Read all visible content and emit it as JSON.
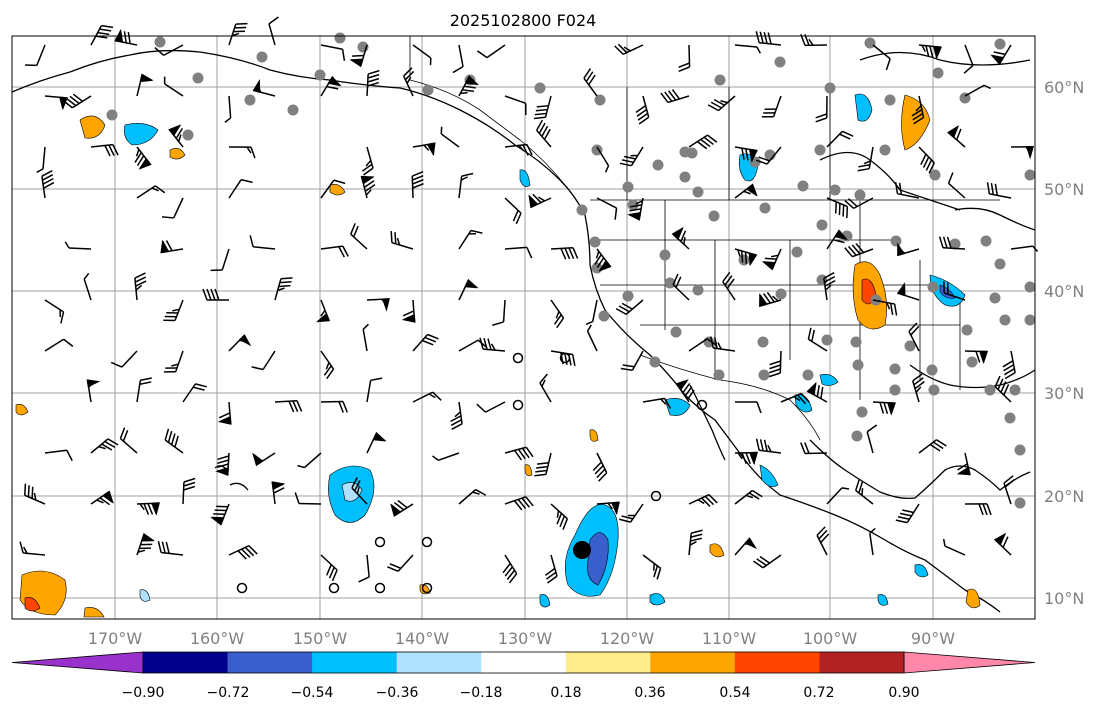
{
  "title": "2025102800 F024",
  "lon_labels": [
    "170°W",
    "160°W",
    "150°W",
    "140°W",
    "130°W",
    "120°W",
    "110°W",
    "100°W",
    "90°W"
  ],
  "lat_labels": [
    "60°N",
    "50°N",
    "40°N",
    "30°N",
    "20°N",
    "10°N"
  ],
  "colorbar": {
    "colors": [
      "#9932cc",
      "#00008b",
      "#3a5fcd",
      "#00bfff",
      "#b0e2ff",
      "#ffffff",
      "#ffec8b",
      "#ffa500",
      "#ff4500",
      "#b22222",
      "#ff88aa"
    ],
    "tick_labels": [
      "−0.90",
      "−0.72",
      "−0.54",
      "−0.36",
      "−0.18",
      "0.18",
      "0.36",
      "0.54",
      "0.72",
      "0.90"
    ]
  }
}
